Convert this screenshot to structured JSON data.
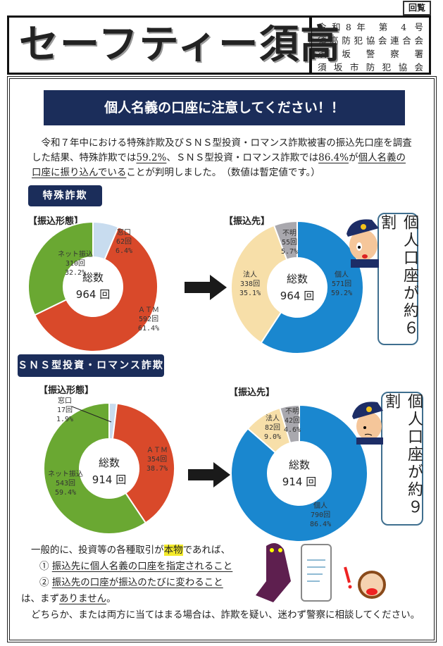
{
  "header": {
    "circulate": "回覧",
    "title": "セーフティー須高",
    "issue": "令和8年 第 4 号",
    "orgs": [
      "須高防犯協会連合会",
      "須坂警察署",
      "須坂市防犯協会"
    ]
  },
  "banner": "個人名義の口座に注意してください！！",
  "intro": {
    "p1": "令和７年中における特殊詐欺及びＳＮＳ型投資・ロマンス詐欺被害の振込先口座を調査した結果、特殊詐欺では",
    "v1": "59.2%",
    "p2": "、ＳＮＳ型投資・ロマンス詐欺では",
    "v2": "86.4%",
    "p3": "が",
    "p4": "個人名義の口座に振り込んでいる",
    "p5": "ことが判明しました。　（数値は暫定値です。）"
  },
  "sections": [
    {
      "tag": "特殊詐欺",
      "left_header": "【振込形態】",
      "right_header": "【振込先】",
      "callout": "個人口座が約６割"
    },
    {
      "tag": "ＳＮＳ型投資・ロマンス詐欺",
      "left_header": "【振込形態】",
      "right_header": "【振込先】",
      "callout": "個人口座が約９割"
    }
  ],
  "chart_data": [
    {
      "type": "pie",
      "title": "【振込形態】",
      "center_label": "総数",
      "total": "964 回",
      "slices": [
        {
          "label": "窓口",
          "count": "62回",
          "percent": 6.4,
          "pct": "6.4%",
          "color": "#c8dcef"
        },
        {
          "label": "ＡＴＭ",
          "count": "592回",
          "percent": 61.4,
          "pct": "61.4%",
          "color": "#d9492a"
        },
        {
          "label": "ネット振込",
          "count": "310回",
          "percent": 32.2,
          "pct": "32.2%",
          "color": "#6aa832"
        }
      ]
    },
    {
      "type": "pie",
      "title": "【振込先】",
      "center_label": "総数",
      "total": "964 回",
      "slices": [
        {
          "label": "個人",
          "count": "571回",
          "percent": 59.2,
          "pct": "59.2%",
          "color": "#1a87cf"
        },
        {
          "label": "法人",
          "count": "338回",
          "percent": 35.1,
          "pct": "35.1%",
          "color": "#f7dfa9"
        },
        {
          "label": "不明",
          "count": "55回",
          "percent": 5.7,
          "pct": "5.7%",
          "color": "#a9a8ae"
        }
      ]
    },
    {
      "type": "pie",
      "title": "【振込形態】",
      "center_label": "総数",
      "total": "914 回",
      "slices": [
        {
          "label": "窓口",
          "count": "17回",
          "percent": 1.9,
          "pct": "1.9%",
          "color": "#c8dcef"
        },
        {
          "label": "ＡＴＭ",
          "count": "354回",
          "percent": 38.7,
          "pct": "38.7%",
          "color": "#d9492a"
        },
        {
          "label": "ネット振込",
          "count": "543回",
          "percent": 59.4,
          "pct": "59.4%",
          "color": "#6aa832"
        }
      ]
    },
    {
      "type": "pie",
      "title": "【振込先】",
      "center_label": "総数",
      "total": "914 回",
      "slices": [
        {
          "label": "個人",
          "count": "790回",
          "percent": 86.4,
          "pct": "86.4%",
          "color": "#1a87cf"
        },
        {
          "label": "法人",
          "count": "82回",
          "percent": 9.0,
          "pct": "9.0%",
          "color": "#f7dfa9"
        },
        {
          "label": "不明",
          "count": "42回",
          "percent": 4.6,
          "pct": "4.6%",
          "color": "#a9a8ae"
        }
      ]
    }
  ],
  "closing": {
    "l1a": "一般的に、投資等の各種取引が",
    "l1b": "本物",
    "l1c": "であれば、",
    "i1n": "①",
    "i1": "振込先に個人名義の口座を指定されること",
    "i2n": "②",
    "i2": "振込先の口座が振込のたびに変わること",
    "l4a": "は、まず",
    "l4b": "ありません",
    "l4c": "。",
    "l5": "どちらか、または両方に当てはまる場合は、詐欺を疑い、迷わず警察に相談してください。"
  }
}
